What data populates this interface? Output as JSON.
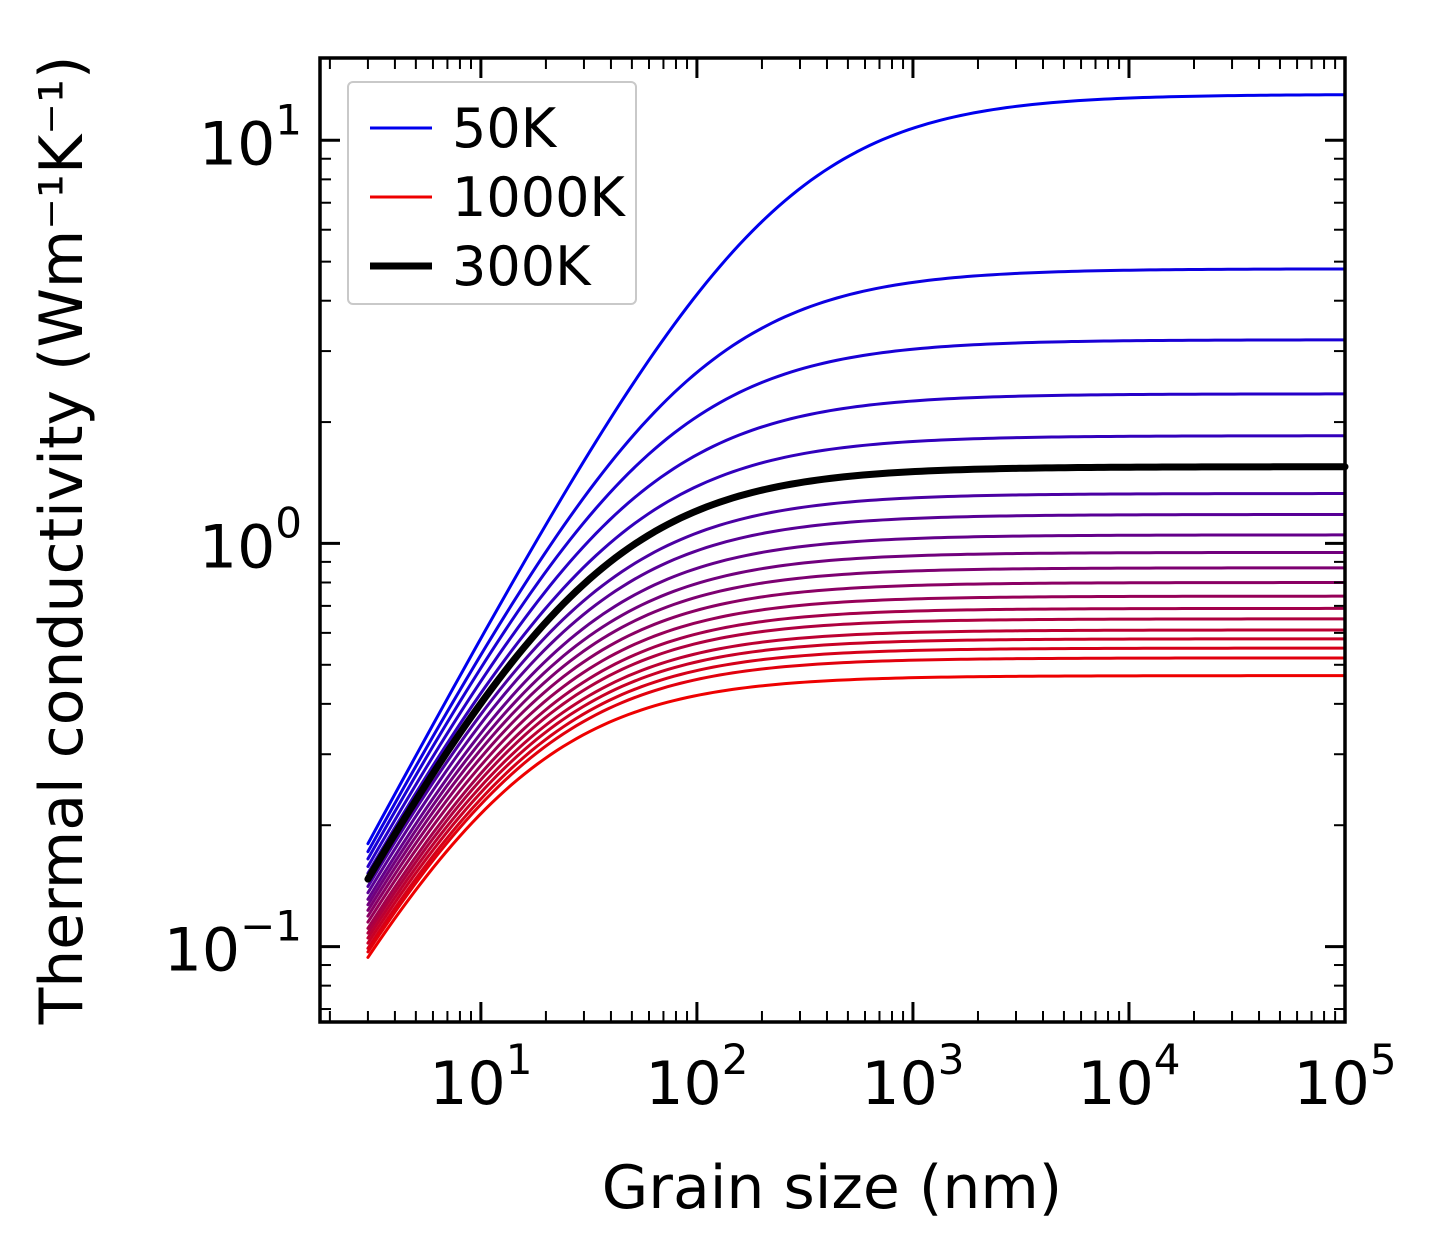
{
  "figure": {
    "background": "#ffffff",
    "axis_color": "#000000"
  },
  "chart_data": {
    "type": "line",
    "title": "",
    "xlabel": "Grain size (nm)",
    "ylabel": "Thermal conductivity (Wm⁻¹K⁻¹)",
    "x_scale": "log",
    "y_scale": "log",
    "xlim": [
      1.8,
      100000
    ],
    "ylim": [
      0.065,
      16
    ],
    "x_major_tick_exponents": [
      1,
      2,
      3,
      4,
      5
    ],
    "y_major_tick_exponents": [
      -1,
      0,
      1
    ],
    "grid": false,
    "legend": {
      "position": "upper-left",
      "entries": [
        {
          "label": "50K",
          "color": "#0000ee",
          "line_width": 3
        },
        {
          "label": "1000K",
          "color": "#ee0000",
          "line_width": 3
        },
        {
          "label": "300K",
          "color": "#000000",
          "line_width": 7
        }
      ]
    },
    "style": {
      "color_cold": "#0000ee",
      "color_hot": "#ee0000",
      "highlight_temperature_K": 300,
      "highlight_color": "#000000",
      "temperature_range_K": [
        50,
        1000
      ],
      "temperature_step_K": 50
    },
    "model": "kappa(d) = kappa_inf / (1 + d0/d) with d0 = 3*(kappa_inf/kappa_at_3nm - 1); one curve per temperature from 50K (blue) to 1000K (red) in 50K steps; 300K drawn as thick black line",
    "x_samples_nm": [
      3,
      10,
      30,
      100,
      300,
      1000,
      3000,
      10000,
      100000
    ],
    "series": [
      {
        "temperature_K": 50,
        "kappa_inf": 13.0,
        "values": [
          0.18,
          0.581,
          1.6,
          4.144,
          7.592,
          10.711,
          12.136,
          12.728,
          12.972
        ]
      },
      {
        "temperature_K": 100,
        "kappa_inf": 4.8,
        "values": [
          0.172,
          0.529,
          1.301,
          2.656,
          3.782,
          4.441,
          4.674,
          4.762,
          4.796
        ]
      },
      {
        "temperature_K": 150,
        "kappa_inf": 3.2,
        "values": [
          0.165,
          0.491,
          1.127,
          2.062,
          2.703,
          3.033,
          3.142,
          3.182,
          3.198
        ]
      },
      {
        "temperature_K": 200,
        "kappa_inf": 2.35,
        "values": [
          0.158,
          0.455,
          0.984,
          1.659,
          2.064,
          2.256,
          2.318,
          2.34,
          2.349
        ]
      },
      {
        "temperature_K": 250,
        "kappa_inf": 1.85,
        "values": [
          0.152,
          0.425,
          0.874,
          1.386,
          1.664,
          1.79,
          1.83,
          1.844,
          1.849
        ]
      },
      {
        "temperature_K": 300,
        "kappa_inf": 1.55,
        "values": [
          0.147,
          0.401,
          0.793,
          1.205,
          1.415,
          1.507,
          1.535,
          1.546,
          1.55
        ]
      },
      {
        "temperature_K": 350,
        "kappa_inf": 1.33,
        "values": [
          0.141,
          0.377,
          0.722,
          1.061,
          1.227,
          1.297,
          1.319,
          1.327,
          1.33
        ]
      },
      {
        "temperature_K": 400,
        "kappa_inf": 1.18,
        "values": [
          0.136,
          0.357,
          0.668,
          0.959,
          1.096,
          1.153,
          1.171,
          1.177,
          1.18
        ]
      },
      {
        "temperature_K": 450,
        "kappa_inf": 1.05,
        "values": [
          0.131,
          0.338,
          0.617,
          0.867,
          0.981,
          1.028,
          1.043,
          1.048,
          1.05
        ]
      },
      {
        "temperature_K": 500,
        "kappa_inf": 0.95,
        "values": [
          0.127,
          0.323,
          0.576,
          0.795,
          0.892,
          0.932,
          0.944,
          0.948,
          0.95
        ]
      },
      {
        "temperature_K": 550,
        "kappa_inf": 0.87,
        "values": [
          0.123,
          0.308,
          0.541,
          0.736,
          0.82,
          0.854,
          0.865,
          0.868,
          0.87
        ]
      },
      {
        "temperature_K": 600,
        "kappa_inf": 0.8,
        "values": [
          0.119,
          0.294,
          0.509,
          0.683,
          0.757,
          0.787,
          0.795,
          0.799,
          0.8
        ]
      },
      {
        "temperature_K": 650,
        "kappa_inf": 0.74,
        "values": [
          0.115,
          0.281,
          0.479,
          0.636,
          0.702,
          0.728,
          0.736,
          0.739,
          0.74
        ]
      },
      {
        "temperature_K": 700,
        "kappa_inf": 0.69,
        "values": [
          0.111,
          0.269,
          0.453,
          0.597,
          0.656,
          0.679,
          0.686,
          0.689,
          0.69
        ]
      },
      {
        "temperature_K": 750,
        "kappa_inf": 0.65,
        "values": [
          0.108,
          0.259,
          0.433,
          0.565,
          0.619,
          0.64,
          0.647,
          0.649,
          0.65
        ]
      },
      {
        "temperature_K": 800,
        "kappa_inf": 0.61,
        "values": [
          0.105,
          0.25,
          0.412,
          0.533,
          0.582,
          0.601,
          0.607,
          0.609,
          0.61
        ]
      },
      {
        "temperature_K": 850,
        "kappa_inf": 0.58,
        "values": [
          0.102,
          0.241,
          0.395,
          0.509,
          0.554,
          0.572,
          0.577,
          0.579,
          0.58
        ]
      },
      {
        "temperature_K": 900,
        "kappa_inf": 0.55,
        "values": [
          0.099,
          0.232,
          0.378,
          0.484,
          0.526,
          0.543,
          0.548,
          0.549,
          0.55
        ]
      },
      {
        "temperature_K": 950,
        "kappa_inf": 0.52,
        "values": [
          0.097,
          0.225,
          0.362,
          0.46,
          0.498,
          0.513,
          0.518,
          0.519,
          0.52
        ]
      },
      {
        "temperature_K": 1000,
        "kappa_inf": 0.47,
        "values": [
          0.094,
          0.214,
          0.336,
          0.42,
          0.452,
          0.464,
          0.468,
          0.469,
          0.47
        ]
      }
    ]
  }
}
